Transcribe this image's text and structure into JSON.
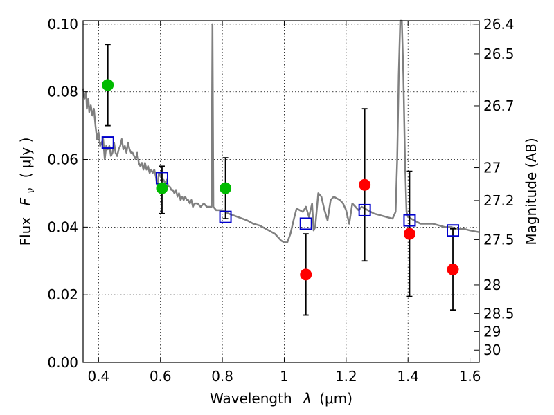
{
  "chart_data": {
    "type": "scatter",
    "xlabel_text": "Wavelength",
    "xlabel_symbol": "λ",
    "xlabel_unit": "(μm)",
    "ylabel_text": "Flux",
    "ylabel_symbol": "F",
    "ylabel_subscript": "ν",
    "ylabel_unit": "( μJy )",
    "y2label": "Magnitude (AB)",
    "xlim": [
      0.35,
      1.63
    ],
    "ylim": [
      0.0,
      0.101
    ],
    "grid": true,
    "x_ticks": [
      {
        "value": 0.4,
        "label": "0.4"
      },
      {
        "value": 0.6,
        "label": "0.6"
      },
      {
        "value": 0.8,
        "label": "0.8"
      },
      {
        "value": 1.0,
        "label": "1"
      },
      {
        "value": 1.2,
        "label": "1.2"
      },
      {
        "value": 1.4,
        "label": "1.4"
      },
      {
        "value": 1.6,
        "label": "1.6"
      }
    ],
    "y_ticks": [
      {
        "value": 0.0,
        "label": "0.00"
      },
      {
        "value": 0.02,
        "label": "0.02"
      },
      {
        "value": 0.04,
        "label": "0.04"
      },
      {
        "value": 0.06,
        "label": "0.06"
      },
      {
        "value": 0.08,
        "label": "0.08"
      },
      {
        "value": 0.1,
        "label": "0.10"
      }
    ],
    "y2_ticks": [
      {
        "value": 26.4,
        "label": "26.4"
      },
      {
        "value": 26.5,
        "label": "26.5"
      },
      {
        "value": 26.7,
        "label": "26.7"
      },
      {
        "value": 27.0,
        "label": "27"
      },
      {
        "value": 27.2,
        "label": "27.2"
      },
      {
        "value": 27.5,
        "label": "27.5"
      },
      {
        "value": 28.0,
        "label": "28"
      },
      {
        "value": 28.5,
        "label": "28.5"
      },
      {
        "value": 29.0,
        "label": "29"
      },
      {
        "value": 30.0,
        "label": "30"
      }
    ],
    "series": [
      {
        "kind": "line",
        "color": "#808080",
        "points": [
          [
            0.35,
            0.081
          ],
          [
            0.355,
            0.078
          ],
          [
            0.36,
            0.08
          ],
          [
            0.362,
            0.075
          ],
          [
            0.367,
            0.078
          ],
          [
            0.37,
            0.074
          ],
          [
            0.375,
            0.076
          ],
          [
            0.38,
            0.073
          ],
          [
            0.385,
            0.075
          ],
          [
            0.39,
            0.07
          ],
          [
            0.395,
            0.066
          ],
          [
            0.4,
            0.068
          ],
          [
            0.405,
            0.064
          ],
          [
            0.41,
            0.065
          ],
          [
            0.415,
            0.066
          ],
          [
            0.42,
            0.06
          ],
          [
            0.425,
            0.064
          ],
          [
            0.43,
            0.063
          ],
          [
            0.435,
            0.064
          ],
          [
            0.44,
            0.061
          ],
          [
            0.445,
            0.062
          ],
          [
            0.45,
            0.065
          ],
          [
            0.455,
            0.062
          ],
          [
            0.46,
            0.061
          ],
          [
            0.465,
            0.063
          ],
          [
            0.47,
            0.064
          ],
          [
            0.475,
            0.066
          ],
          [
            0.48,
            0.063
          ],
          [
            0.485,
            0.064
          ],
          [
            0.49,
            0.062
          ],
          [
            0.495,
            0.065
          ],
          [
            0.5,
            0.063
          ],
          [
            0.505,
            0.062
          ],
          [
            0.51,
            0.062
          ],
          [
            0.515,
            0.061
          ],
          [
            0.52,
            0.06
          ],
          [
            0.525,
            0.062
          ],
          [
            0.53,
            0.059
          ],
          [
            0.535,
            0.058
          ],
          [
            0.54,
            0.059
          ],
          [
            0.545,
            0.057
          ],
          [
            0.55,
            0.059
          ],
          [
            0.555,
            0.057
          ],
          [
            0.56,
            0.058
          ],
          [
            0.565,
            0.056
          ],
          [
            0.57,
            0.057
          ],
          [
            0.575,
            0.056
          ],
          [
            0.58,
            0.057
          ],
          [
            0.585,
            0.055
          ],
          [
            0.59,
            0.052
          ],
          [
            0.595,
            0.056
          ],
          [
            0.6,
            0.055
          ],
          [
            0.605,
            0.054
          ],
          [
            0.61,
            0.054
          ],
          [
            0.615,
            0.053
          ],
          [
            0.62,
            0.054
          ],
          [
            0.625,
            0.052
          ],
          [
            0.63,
            0.052
          ],
          [
            0.635,
            0.051
          ],
          [
            0.64,
            0.051
          ],
          [
            0.645,
            0.05
          ],
          [
            0.65,
            0.051
          ],
          [
            0.655,
            0.049
          ],
          [
            0.66,
            0.05
          ],
          [
            0.665,
            0.048
          ],
          [
            0.67,
            0.049
          ],
          [
            0.675,
            0.048
          ],
          [
            0.68,
            0.049
          ],
          [
            0.685,
            0.048
          ],
          [
            0.69,
            0.048
          ],
          [
            0.695,
            0.047
          ],
          [
            0.7,
            0.048
          ],
          [
            0.705,
            0.046
          ],
          [
            0.71,
            0.047
          ],
          [
            0.72,
            0.047
          ],
          [
            0.73,
            0.046
          ],
          [
            0.74,
            0.047
          ],
          [
            0.75,
            0.046
          ],
          [
            0.76,
            0.046
          ],
          [
            0.765,
            0.046
          ],
          [
            0.768,
            0.1
          ],
          [
            0.771,
            0.046
          ],
          [
            0.78,
            0.045
          ],
          [
            0.8,
            0.045
          ],
          [
            0.82,
            0.044
          ],
          [
            0.85,
            0.043
          ],
          [
            0.88,
            0.042
          ],
          [
            0.9,
            0.041
          ],
          [
            0.92,
            0.0405
          ],
          [
            0.95,
            0.039
          ],
          [
            0.97,
            0.038
          ],
          [
            0.99,
            0.036
          ],
          [
            1.0,
            0.0355
          ],
          [
            1.01,
            0.0355
          ],
          [
            1.02,
            0.038
          ],
          [
            1.03,
            0.042
          ],
          [
            1.04,
            0.0455
          ],
          [
            1.05,
            0.045
          ],
          [
            1.06,
            0.0445
          ],
          [
            1.07,
            0.046
          ],
          [
            1.08,
            0.043
          ],
          [
            1.09,
            0.047
          ],
          [
            1.095,
            0.039
          ],
          [
            1.1,
            0.04
          ],
          [
            1.11,
            0.05
          ],
          [
            1.12,
            0.049
          ],
          [
            1.13,
            0.045
          ],
          [
            1.14,
            0.042
          ],
          [
            1.15,
            0.048
          ],
          [
            1.16,
            0.049
          ],
          [
            1.17,
            0.0485
          ],
          [
            1.18,
            0.048
          ],
          [
            1.19,
            0.047
          ],
          [
            1.2,
            0.045
          ],
          [
            1.21,
            0.041
          ],
          [
            1.22,
            0.047
          ],
          [
            1.23,
            0.046
          ],
          [
            1.24,
            0.045
          ],
          [
            1.25,
            0.046
          ],
          [
            1.27,
            0.045
          ],
          [
            1.29,
            0.044
          ],
          [
            1.31,
            0.0435
          ],
          [
            1.33,
            0.043
          ],
          [
            1.35,
            0.0425
          ],
          [
            1.36,
            0.0445
          ],
          [
            1.365,
            0.06
          ],
          [
            1.37,
            0.085
          ],
          [
            1.375,
            0.101
          ],
          [
            1.38,
            0.101
          ],
          [
            1.385,
            0.085
          ],
          [
            1.39,
            0.06
          ],
          [
            1.395,
            0.0445
          ],
          [
            1.4,
            0.043
          ],
          [
            1.42,
            0.042
          ],
          [
            1.44,
            0.041
          ],
          [
            1.46,
            0.041
          ],
          [
            1.48,
            0.041
          ],
          [
            1.5,
            0.0405
          ],
          [
            1.52,
            0.04
          ],
          [
            1.54,
            0.04
          ],
          [
            1.56,
            0.0395
          ],
          [
            1.58,
            0.0395
          ],
          [
            1.6,
            0.039
          ],
          [
            1.63,
            0.0385
          ]
        ]
      },
      {
        "kind": "squares",
        "color": "#0000cc",
        "points": [
          [
            0.43,
            0.065
          ],
          [
            0.605,
            0.0545
          ],
          [
            0.81,
            0.043
          ],
          [
            1.07,
            0.041
          ],
          [
            1.26,
            0.045
          ],
          [
            1.405,
            0.042
          ],
          [
            1.545,
            0.039
          ]
        ]
      },
      {
        "kind": "circles",
        "color": "#00bb00",
        "points": [
          {
            "x": 0.43,
            "y": 0.082,
            "ylo": 0.07,
            "yhi": 0.094
          },
          {
            "x": 0.605,
            "y": 0.0515,
            "ylo": 0.044,
            "yhi": 0.058
          },
          {
            "x": 0.81,
            "y": 0.0515,
            "ylo": 0.0425,
            "yhi": 0.0605
          }
        ]
      },
      {
        "kind": "circles",
        "color": "#ff0000",
        "points": [
          {
            "x": 1.07,
            "y": 0.026,
            "ylo": 0.014,
            "yhi": 0.038
          },
          {
            "x": 1.26,
            "y": 0.0525,
            "ylo": 0.03,
            "yhi": 0.075
          },
          {
            "x": 1.405,
            "y": 0.038,
            "ylo": 0.0195,
            "yhi": 0.0565
          },
          {
            "x": 1.545,
            "y": 0.0275,
            "ylo": 0.0155,
            "yhi": 0.0395
          }
        ]
      }
    ]
  }
}
